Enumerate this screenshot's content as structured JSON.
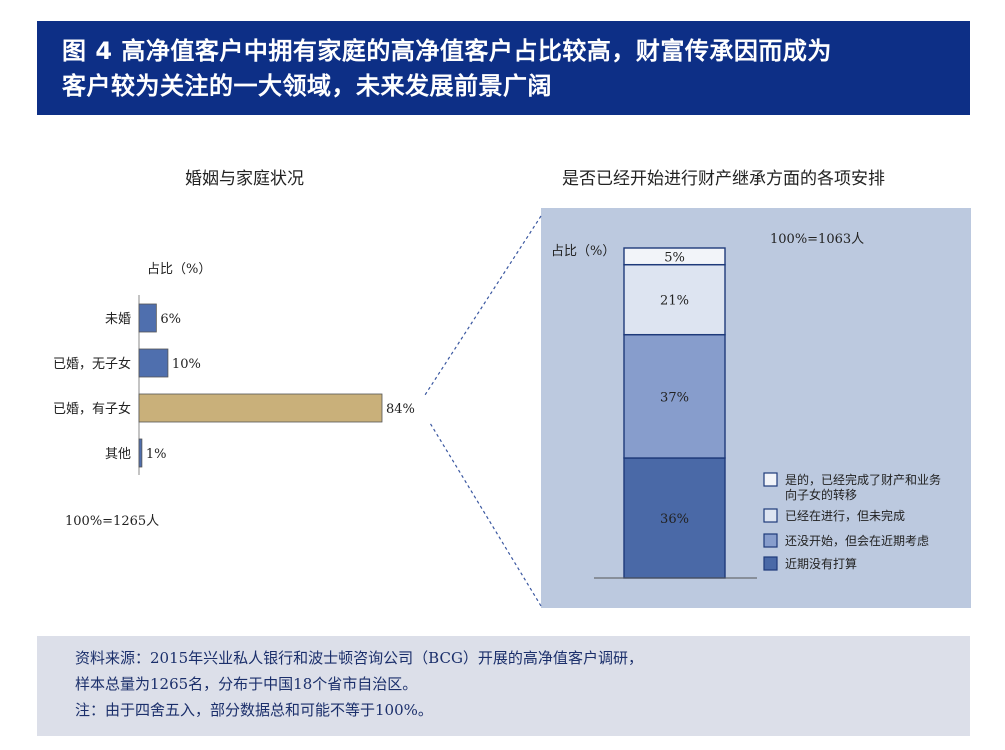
{
  "header": {
    "line1": "图 4 高净值客户中拥有家庭的高净值客户占比较高，财富传承因而成为",
    "line2": "客户较为关注的一大领域，未来发展前景广阔"
  },
  "colors": {
    "banner": "#0d2f86",
    "bar_blue": "#4f6fae",
    "bar_highlight": "#c9b07a",
    "panel_bg": "#bcc9df",
    "footer_bg": "#dcdfe9"
  },
  "chart_data": [
    {
      "type": "bar",
      "orientation": "horizontal",
      "title": "婚姻与家庭状况",
      "ylabel": "占比（%）",
      "categories": [
        "未婚",
        "已婚，无子女",
        "已婚，有子女",
        "其他"
      ],
      "values": [
        6,
        10,
        84,
        1
      ],
      "value_labels": [
        "6%",
        "10%",
        "84%",
        "1%"
      ],
      "highlight_category": "已婚，有子女",
      "note": "100%=1265人"
    },
    {
      "type": "bar",
      "stacked": true,
      "title": "是否已经开始进行财产继承方面的各项安排",
      "ylabel": "占比（%）",
      "note": "100%=1063人",
      "series": [
        {
          "name": "近期没有打算",
          "value": 36,
          "label": "36%",
          "color": "#4a69a7"
        },
        {
          "name": "还没开始，但会在近期考虑",
          "value": 37,
          "label": "37%",
          "color": "#879dcc"
        },
        {
          "name": "已经在进行，但未完成",
          "value": 21,
          "label": "21%",
          "color": "#dde4f1"
        },
        {
          "name": "是的，已经完成了财产和业务向子女的转移",
          "value": 5,
          "label": "5%",
          "color": "#f2f4f9"
        }
      ],
      "legend_order": [
        "是的，已经完成了财产和业务向子女的转移",
        "已经在进行，但未完成",
        "还没开始，但会在近期考虑",
        "近期没有打算"
      ],
      "legend_position": "bottom-right"
    }
  ],
  "footer": {
    "line1": "资料来源：2015年兴业私人银行和波士顿咨询公司（BCG）开展的高净值客户调研，",
    "line2": "样本总量为1265名，分布于中国18个省市自治区。",
    "line3": "注：由于四舍五入，部分数据总和可能不等于100%。"
  }
}
